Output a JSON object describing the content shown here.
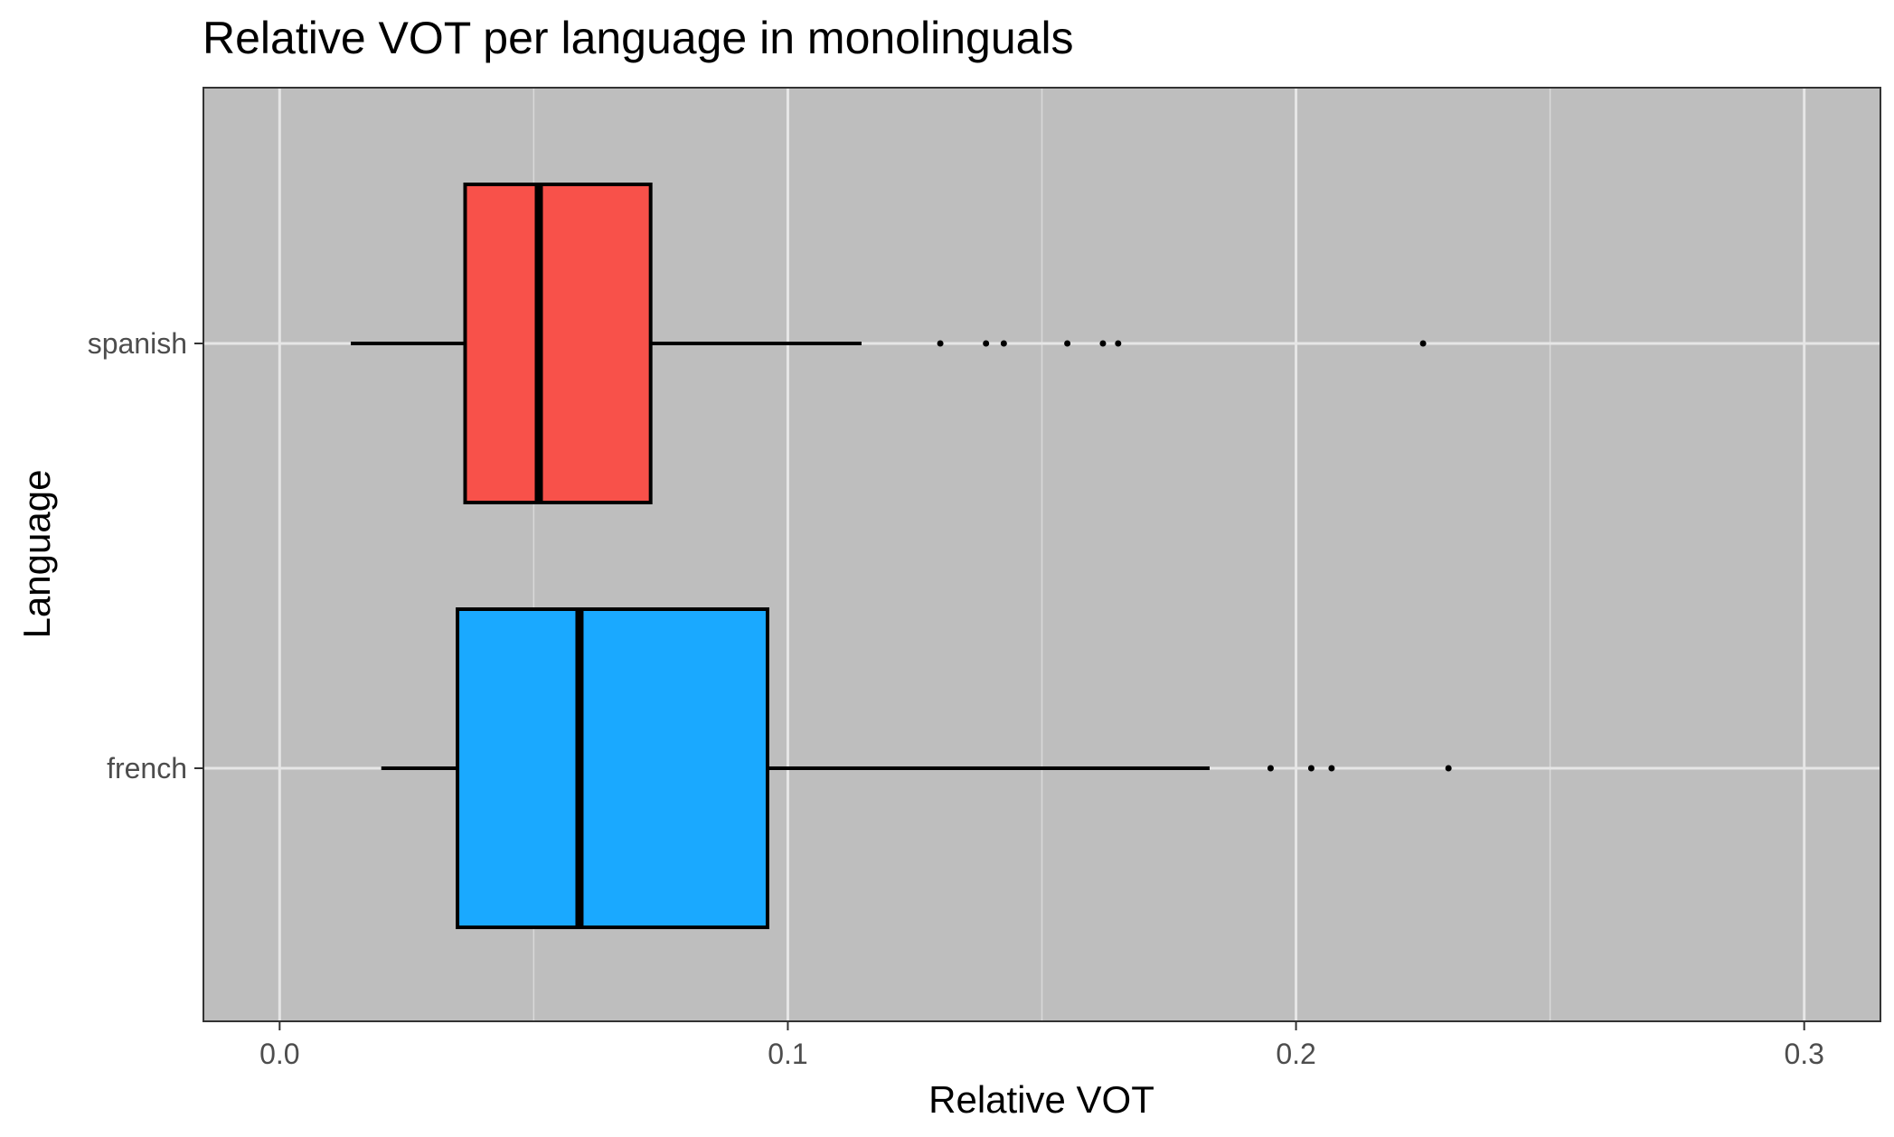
{
  "chart_data": {
    "type": "boxplot",
    "orientation": "horizontal",
    "title": "Relative VOT per language in monolinguals",
    "xlabel": "Relative VOT",
    "ylabel": "Language",
    "xlim": [
      -0.015,
      0.315
    ],
    "x_ticks": [
      0.0,
      0.1,
      0.2,
      0.3
    ],
    "x_tick_labels": [
      "0.0",
      "0.1",
      "0.2",
      "0.3"
    ],
    "x_minor_ticks": [
      0.05,
      0.15,
      0.25
    ],
    "grid": true,
    "panel_background": "#bebebe",
    "grid_color": "#e6e6e6",
    "categories": [
      "spanish",
      "french"
    ],
    "series": [
      {
        "category": "spanish",
        "whisker_low": 0.014,
        "q1": 0.0365,
        "median": 0.051,
        "q3": 0.073,
        "whisker_high": 0.1145,
        "outliers": [
          0.13,
          0.139,
          0.1425,
          0.155,
          0.162,
          0.165,
          0.225
        ],
        "color": "#f8514a"
      },
      {
        "category": "french",
        "whisker_low": 0.02,
        "q1": 0.035,
        "median": 0.059,
        "q3": 0.096,
        "whisker_high": 0.183,
        "outliers": [
          0.195,
          0.203,
          0.207,
          0.23
        ],
        "color": "#1aa9ff"
      }
    ]
  }
}
